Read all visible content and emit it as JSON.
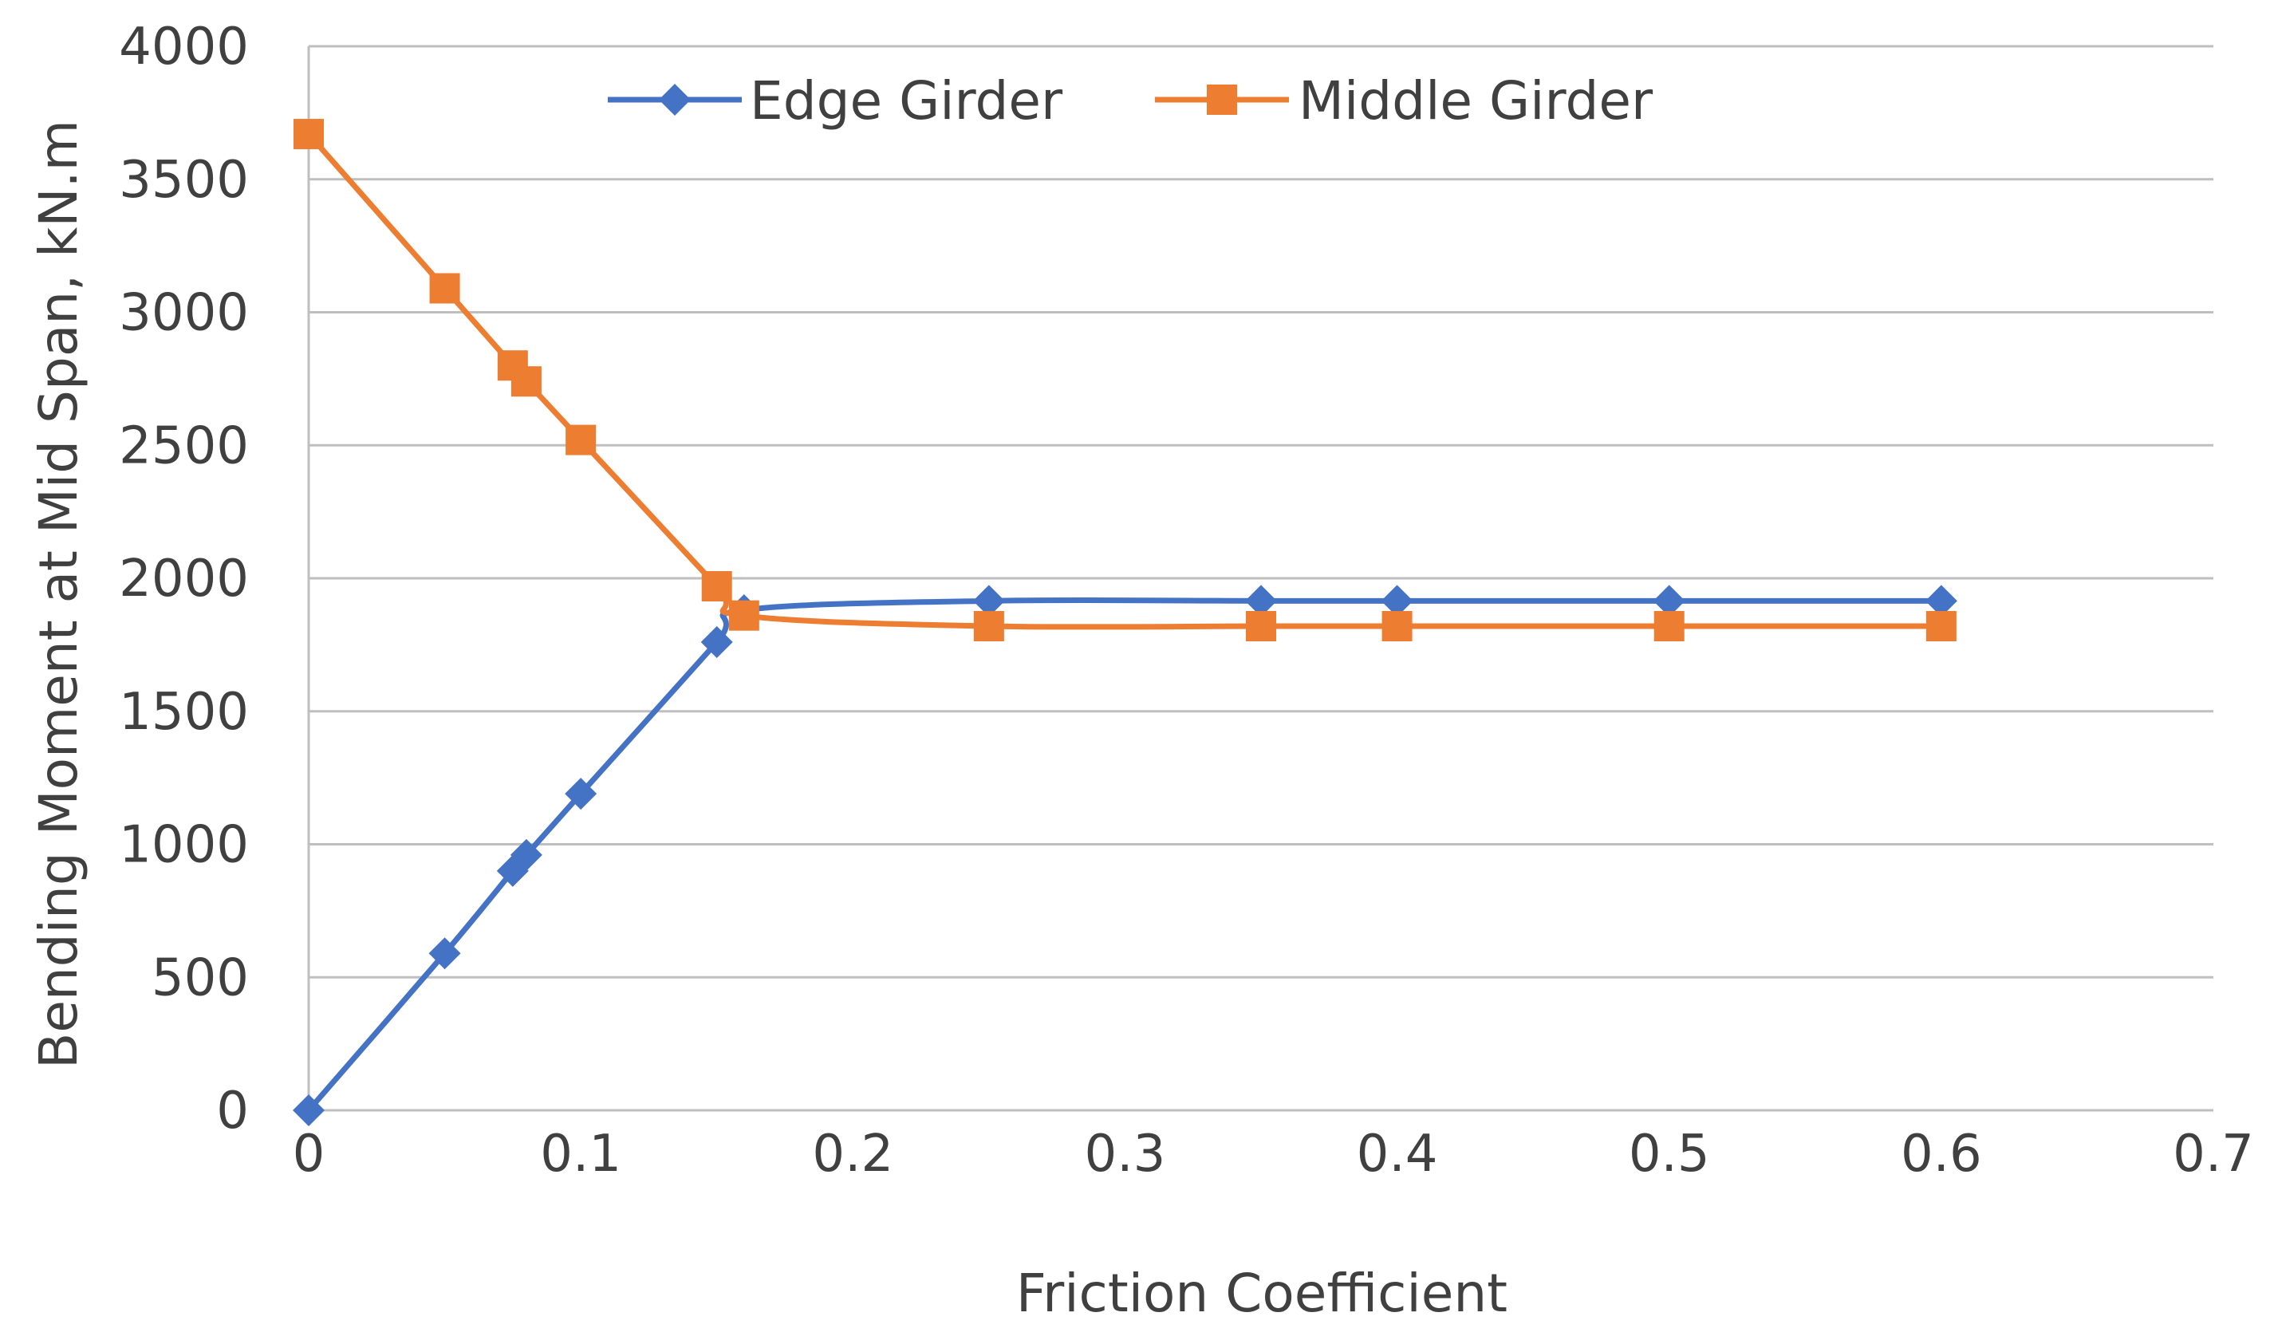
{
  "chart_data": {
    "type": "line",
    "title": "",
    "xlabel": "Friction Coefficient",
    "ylabel": "Bending Moment at Mid Span, kN.m",
    "xlim": [
      0,
      0.7
    ],
    "ylim": [
      0,
      4000
    ],
    "x_ticks": [
      "0",
      "0.1",
      "0.2",
      "0.3",
      "0.4",
      "0.5",
      "0.6",
      "0.7"
    ],
    "y_ticks": [
      "0",
      "500",
      "1000",
      "1500",
      "2000",
      "2500",
      "3000",
      "3500",
      "4000"
    ],
    "grid": "horizontal",
    "legend_position": "top",
    "series": [
      {
        "name": "Edge Girder",
        "marker": "diamond",
        "color": "#4472C4",
        "x": [
          0,
          0.05,
          0.075,
          0.08,
          0.1,
          0.15,
          0.16,
          0.25,
          0.35,
          0.4,
          0.5,
          0.6
        ],
        "y": [
          0,
          590,
          900,
          960,
          1190,
          1760,
          1880,
          1915,
          1915,
          1915,
          1915,
          1915
        ]
      },
      {
        "name": "Middle Girder",
        "marker": "square",
        "color": "#ED7D31",
        "x": [
          0,
          0.05,
          0.075,
          0.08,
          0.1,
          0.15,
          0.16,
          0.25,
          0.35,
          0.4,
          0.5,
          0.6
        ],
        "y": [
          3670,
          3090,
          2800,
          2740,
          2520,
          1970,
          1860,
          1820,
          1820,
          1820,
          1820,
          1820
        ]
      }
    ]
  }
}
